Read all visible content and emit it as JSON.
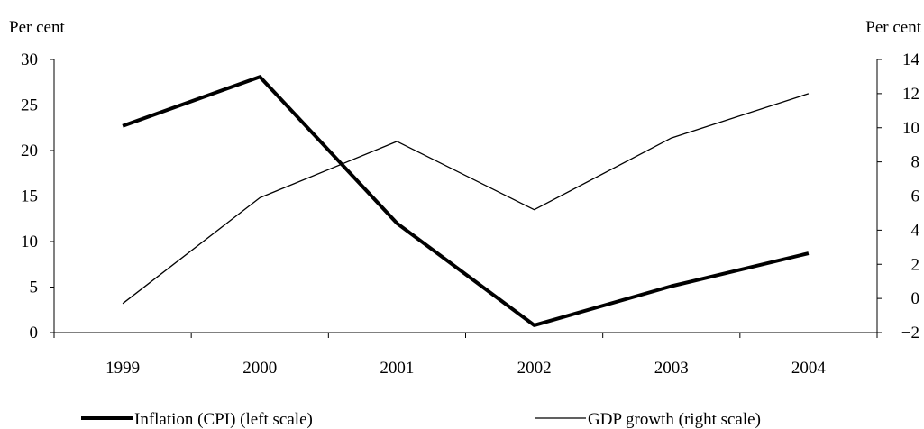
{
  "chart_data": {
    "type": "line",
    "x": [
      "1999",
      "2000",
      "2001",
      "2002",
      "2003",
      "2004"
    ],
    "left_axis": {
      "label": "Per cent",
      "range": [
        0,
        30
      ],
      "ticks": [
        "0",
        "5",
        "10",
        "15",
        "20",
        "25",
        "30"
      ]
    },
    "right_axis": {
      "label": "Per cent",
      "range": [
        -2,
        14
      ],
      "ticks": [
        "−2",
        "0",
        "2",
        "4",
        "6",
        "8",
        "10",
        "12",
        "14"
      ]
    },
    "series": [
      {
        "name": "Inflation (CPI) (left scale)",
        "axis": "left",
        "style": "thick",
        "color": "#000000",
        "values": [
          22.7,
          28.1,
          12.0,
          0.8,
          5.1,
          8.7
        ]
      },
      {
        "name": "GDP growth (right scale)",
        "axis": "right",
        "style": "thin",
        "color": "#000000",
        "values": [
          -0.3,
          5.9,
          9.2,
          5.2,
          9.4,
          12.0
        ]
      }
    ],
    "grid": false,
    "legend_position": "bottom"
  }
}
